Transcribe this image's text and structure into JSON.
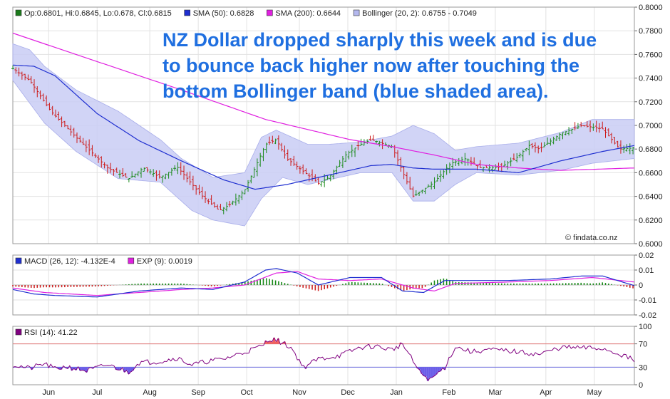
{
  "chart_data": [
    {
      "type": "candlestick",
      "legend": [
        {
          "label": "Op:0.6801, Hi:0.6845, Lo:0.678, Cl:0.6815",
          "color": "#1a7a1a"
        },
        {
          "label": "SMA (50): 0.6828",
          "color": "#1f2fd0"
        },
        {
          "label": "SMA (200): 0.6644",
          "color": "#e020e0"
        },
        {
          "label": "Bollinger (20, 2): 0.6755 - 0.7049",
          "color": "#b4b8ee"
        }
      ],
      "ylim": [
        0.6,
        0.8
      ],
      "yticks": [
        "0.8000",
        "0.7800",
        "0.7600",
        "0.7400",
        "0.7200",
        "0.7000",
        "0.6800",
        "0.6600",
        "0.6400",
        "0.6200",
        "0.6000"
      ],
      "annotation": [
        "NZ Dollar dropped sharply this week and is due",
        "to bounce back higher now after touching the",
        "bottom Bollinger band (blue shaded area)."
      ],
      "watermark": "© findata.co.nz",
      "price_path": {
        "x": [
          0,
          8,
          18,
          30,
          45,
          55,
          62,
          70,
          78,
          90,
          98,
          103,
          110,
          120,
          125,
          130,
          138,
          145,
          150,
          158,
          164,
          170,
          180,
          190,
          200,
          208,
          215,
          222,
          232,
          240,
          245,
          250,
          260,
          270,
          280,
          288,
          295
        ],
        "y": [
          0.748,
          0.738,
          0.712,
          0.69,
          0.664,
          0.655,
          0.664,
          0.656,
          0.665,
          0.64,
          0.628,
          0.633,
          0.645,
          0.684,
          0.688,
          0.672,
          0.661,
          0.651,
          0.656,
          0.675,
          0.683,
          0.688,
          0.682,
          0.64,
          0.652,
          0.668,
          0.672,
          0.664,
          0.665,
          0.674,
          0.683,
          0.68,
          0.693,
          0.7,
          0.697,
          0.68,
          0.681
        ]
      },
      "sma50": {
        "x": [
          0,
          10,
          20,
          40,
          60,
          80,
          100,
          115,
          130,
          150,
          170,
          180,
          190,
          200,
          220,
          240,
          260,
          280,
          295
        ],
        "y": [
          0.751,
          0.75,
          0.742,
          0.71,
          0.687,
          0.67,
          0.654,
          0.646,
          0.65,
          0.658,
          0.666,
          0.667,
          0.664,
          0.663,
          0.663,
          0.66,
          0.67,
          0.678,
          0.683
        ]
      },
      "sma200": {
        "x": [
          0,
          40,
          80,
          120,
          160,
          180,
          200,
          220,
          240,
          260,
          295
        ],
        "y": [
          0.778,
          0.754,
          0.73,
          0.705,
          0.688,
          0.682,
          0.675,
          0.667,
          0.664,
          0.662,
          0.664
        ]
      },
      "boll_upper": {
        "x": [
          0,
          8,
          15,
          30,
          50,
          70,
          80,
          95,
          110,
          118,
          125,
          140,
          150,
          165,
          180,
          190,
          200,
          210,
          220,
          240,
          260,
          275,
          295
        ],
        "y": [
          0.769,
          0.764,
          0.75,
          0.73,
          0.712,
          0.688,
          0.672,
          0.656,
          0.66,
          0.69,
          0.696,
          0.684,
          0.684,
          0.686,
          0.691,
          0.7,
          0.693,
          0.679,
          0.682,
          0.685,
          0.694,
          0.705,
          0.705
        ]
      },
      "boll_lower": {
        "x": [
          0,
          15,
          30,
          50,
          70,
          85,
          95,
          110,
          118,
          128,
          140,
          150,
          165,
          180,
          190,
          200,
          210,
          220,
          240,
          260,
          275,
          295
        ],
        "y": [
          0.738,
          0.702,
          0.678,
          0.655,
          0.652,
          0.628,
          0.62,
          0.615,
          0.638,
          0.656,
          0.65,
          0.654,
          0.66,
          0.66,
          0.636,
          0.636,
          0.65,
          0.66,
          0.658,
          0.662,
          0.668,
          0.672
        ]
      }
    },
    {
      "type": "line",
      "legend": [
        {
          "label": "MACD (26, 12): -4.132E-4",
          "color": "#1f2fd0"
        },
        {
          "label": "EXP (9): 0.0019",
          "color": "#e020e0"
        }
      ],
      "ylim": [
        -0.02,
        0.02
      ],
      "yticks": [
        "0.02",
        "0.01",
        "0",
        "-0.01",
        "-0.02"
      ],
      "macd": {
        "x": [
          0,
          10,
          20,
          40,
          60,
          80,
          95,
          110,
          120,
          125,
          135,
          145,
          160,
          175,
          185,
          195,
          205,
          215,
          235,
          255,
          270,
          280,
          295
        ],
        "y": [
          -0.003,
          -0.006,
          -0.007,
          -0.008,
          -0.004,
          -0.002,
          -0.003,
          0.002,
          0.01,
          0.011,
          0.008,
          0.0,
          0.005,
          0.005,
          -0.004,
          -0.005,
          0.003,
          0.003,
          0.003,
          0.004,
          0.006,
          0.006,
          -0.0004
        ]
      },
      "exp": {
        "x": [
          0,
          15,
          40,
          60,
          80,
          95,
          110,
          125,
          135,
          145,
          160,
          175,
          190,
          200,
          210,
          235,
          255,
          275,
          295
        ],
        "y": [
          -0.002,
          -0.005,
          -0.007,
          -0.005,
          -0.003,
          -0.002,
          0.0,
          0.008,
          0.009,
          0.004,
          0.003,
          0.004,
          -0.002,
          -0.004,
          0.001,
          0.002,
          0.003,
          0.005,
          0.002
        ]
      }
    },
    {
      "type": "line",
      "legend": [
        {
          "label": "RSI (14): 41.22",
          "color": "#800080"
        }
      ],
      "ylim": [
        0,
        100
      ],
      "yticks": [
        "100",
        "70",
        "30",
        "0"
      ],
      "reference_lines": [
        70,
        30
      ],
      "rsi": {
        "x": [
          0,
          8,
          15,
          20,
          25,
          35,
          45,
          55,
          60,
          70,
          78,
          85,
          92,
          100,
          110,
          118,
          122,
          126,
          132,
          138,
          145,
          155,
          165,
          172,
          180,
          185,
          193,
          198,
          205,
          210,
          218,
          225,
          235,
          250,
          260,
          272,
          280,
          290,
          295
        ],
        "y": [
          34,
          28,
          36,
          27,
          31,
          24,
          34,
          22,
          38,
          40,
          46,
          34,
          40,
          44,
          56,
          66,
          79,
          75,
          64,
          30,
          44,
          50,
          64,
          66,
          60,
          70,
          22,
          8,
          30,
          65,
          56,
          60,
          58,
          52,
          64,
          63,
          62,
          50,
          41
        ]
      }
    }
  ],
  "x_axis_labels": [
    "Jun",
    "Jul",
    "Aug",
    "Sep",
    "Oct",
    "Nov",
    "Dec",
    "Jan",
    "Feb",
    "Mar",
    "Apr",
    "May"
  ],
  "x_axis_label_days": [
    17,
    40,
    65,
    88,
    111,
    136,
    159,
    182,
    207,
    229,
    253,
    276
  ]
}
